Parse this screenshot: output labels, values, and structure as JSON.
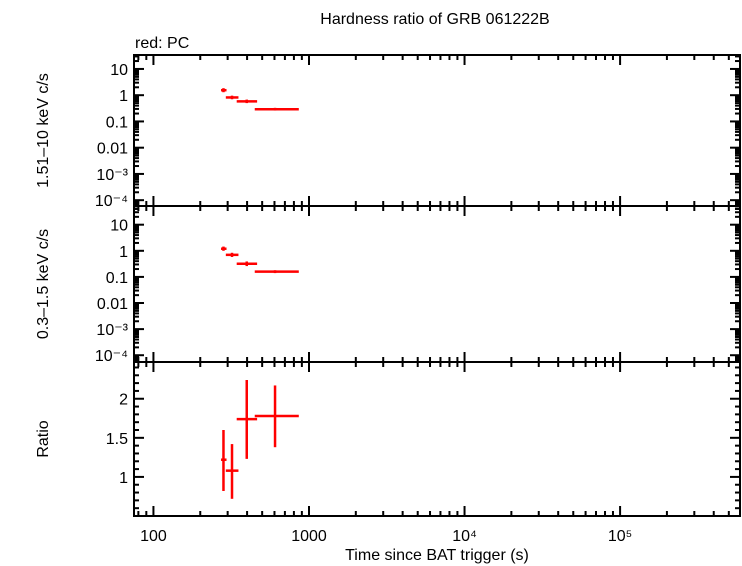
{
  "title": "Hardness ratio of GRB 061222B",
  "legend_note": "red: PC",
  "colors": {
    "series": "#ff0000",
    "axes": "#000000"
  },
  "chart_data": [
    {
      "type": "scatter",
      "panel": "top",
      "ylabel": "1.51–10 keV c/s",
      "xscale": "log",
      "yscale": "log",
      "xlim": [
        75,
        590000
      ],
      "ylim": [
        6e-05,
        34
      ],
      "yticks": [
        {
          "v": 10,
          "label": "10"
        },
        {
          "v": 1,
          "label": "1"
        },
        {
          "v": 0.1,
          "label": "0.1"
        },
        {
          "v": 0.01,
          "label": "0.01"
        },
        {
          "v": 0.001,
          "label": "10⁻³"
        },
        {
          "v": 0.0001,
          "label": "10⁻⁴"
        }
      ],
      "points": [
        {
          "x": 282,
          "xlo": 272,
          "xhi": 295,
          "y": 1.55,
          "ylo": 1.3,
          "yhi": 1.85
        },
        {
          "x": 320,
          "xlo": 292,
          "xhi": 352,
          "y": 0.82,
          "ylo": 0.7,
          "yhi": 0.96
        },
        {
          "x": 398,
          "xlo": 343,
          "xhi": 464,
          "y": 0.58,
          "ylo": 0.5,
          "yhi": 0.68
        },
        {
          "x": 605,
          "xlo": 448,
          "xhi": 860,
          "y": 0.29,
          "ylo": 0.26,
          "yhi": 0.33
        }
      ]
    },
    {
      "type": "scatter",
      "panel": "middle",
      "ylabel": "0.3–1.5 keV c/s",
      "xscale": "log",
      "yscale": "log",
      "xlim": [
        75,
        590000
      ],
      "ylim": [
        5.5e-05,
        52
      ],
      "yticks": [
        {
          "v": 10,
          "label": "10"
        },
        {
          "v": 1,
          "label": "1"
        },
        {
          "v": 0.1,
          "label": "0.1"
        },
        {
          "v": 0.01,
          "label": "0.01"
        },
        {
          "v": 0.001,
          "label": "10⁻³"
        },
        {
          "v": 0.0001,
          "label": "10⁻⁴"
        }
      ],
      "points": [
        {
          "x": 282,
          "xlo": 272,
          "xhi": 295,
          "y": 1.2,
          "ylo": 1.0,
          "yhi": 1.45
        },
        {
          "x": 320,
          "xlo": 292,
          "xhi": 352,
          "y": 0.7,
          "ylo": 0.58,
          "yhi": 0.84
        },
        {
          "x": 398,
          "xlo": 343,
          "xhi": 464,
          "y": 0.32,
          "ylo": 0.26,
          "yhi": 0.39
        },
        {
          "x": 605,
          "xlo": 448,
          "xhi": 860,
          "y": 0.16,
          "ylo": 0.14,
          "yhi": 0.18
        }
      ]
    },
    {
      "type": "scatter",
      "panel": "bottom",
      "ylabel": "Ratio",
      "xlabel": "Time since BAT trigger (s)",
      "xscale": "log",
      "yscale": "linear",
      "xlim": [
        75,
        590000
      ],
      "ylim": [
        0.5,
        2.47
      ],
      "yticks": [
        {
          "v": 2,
          "label": "2"
        },
        {
          "v": 1.5,
          "label": "1.5"
        },
        {
          "v": 1,
          "label": "1"
        }
      ],
      "xticks": [
        {
          "v": 100,
          "label": "100"
        },
        {
          "v": 1000,
          "label": "1000"
        },
        {
          "v": 10000,
          "label": "10⁴"
        },
        {
          "v": 100000,
          "label": "10⁵"
        }
      ],
      "points": [
        {
          "x": 282,
          "xlo": 272,
          "xhi": 295,
          "y": 1.22,
          "ylo": 0.82,
          "yhi": 1.6
        },
        {
          "x": 320,
          "xlo": 292,
          "xhi": 352,
          "y": 1.08,
          "ylo": 0.72,
          "yhi": 1.42
        },
        {
          "x": 398,
          "xlo": 343,
          "xhi": 464,
          "y": 1.74,
          "ylo": 1.23,
          "yhi": 2.24
        },
        {
          "x": 605,
          "xlo": 448,
          "xhi": 860,
          "y": 1.78,
          "ylo": 1.38,
          "yhi": 2.17
        }
      ]
    }
  ]
}
